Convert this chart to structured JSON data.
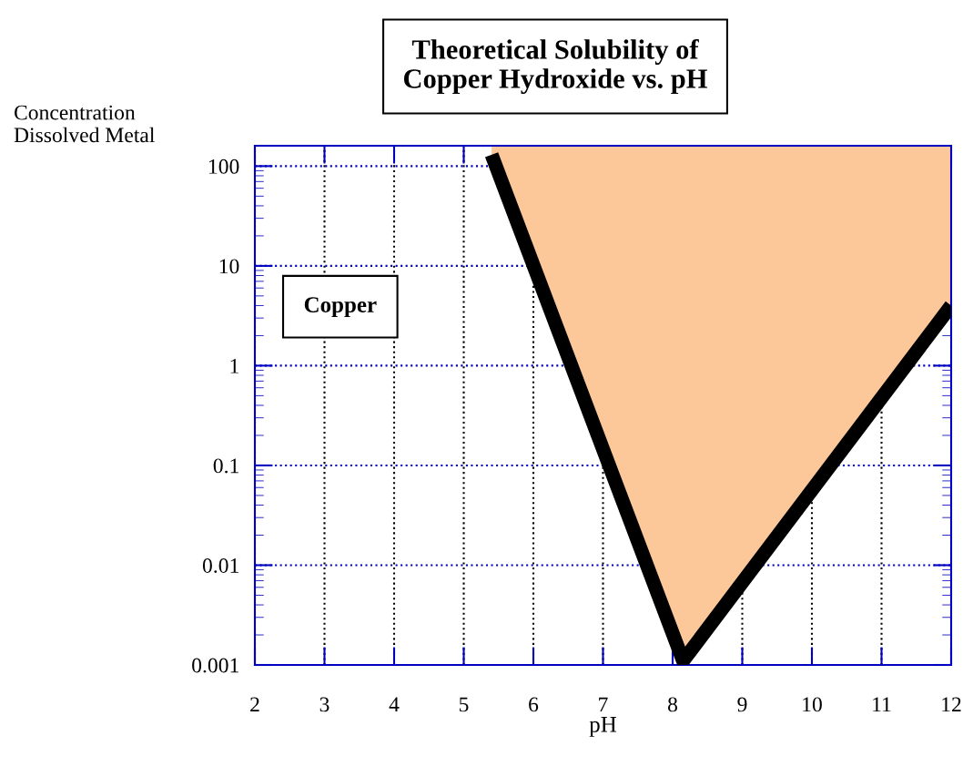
{
  "chart_data": {
    "type": "line",
    "title": "Theoretical Solubility of\nCopper Hydroxide vs. pH",
    "xlabel": "pH",
    "ylabel": "Concentration\nDissolved Metal",
    "x": [
      5.4,
      8.15,
      12
    ],
    "series": [
      {
        "color": "#000000",
        "values": [
          130,
          0.0011,
          4
        ],
        "lower": [
          130,
          0.0011,
          4
        ],
        "upper": [
          160,
          160,
          160
        ]
      }
    ],
    "annotations": [
      "Copper"
    ],
    "log": "y",
    "xlim": [
      2,
      12
    ],
    "ylim": [
      0.001,
      160
    ],
    "xticks": [
      2,
      3,
      4,
      5,
      6,
      7,
      8,
      9,
      10,
      11,
      12
    ],
    "yticks": [
      {
        "value": 0.001,
        "label": "0.001"
      },
      {
        "value": 0.01,
        "label": "0.01"
      },
      {
        "value": 0.1,
        "label": "0.1"
      },
      1,
      10,
      100
    ],
    "grid": true,
    "legend": false,
    "marker": "none",
    "line_style": "solid"
  }
}
